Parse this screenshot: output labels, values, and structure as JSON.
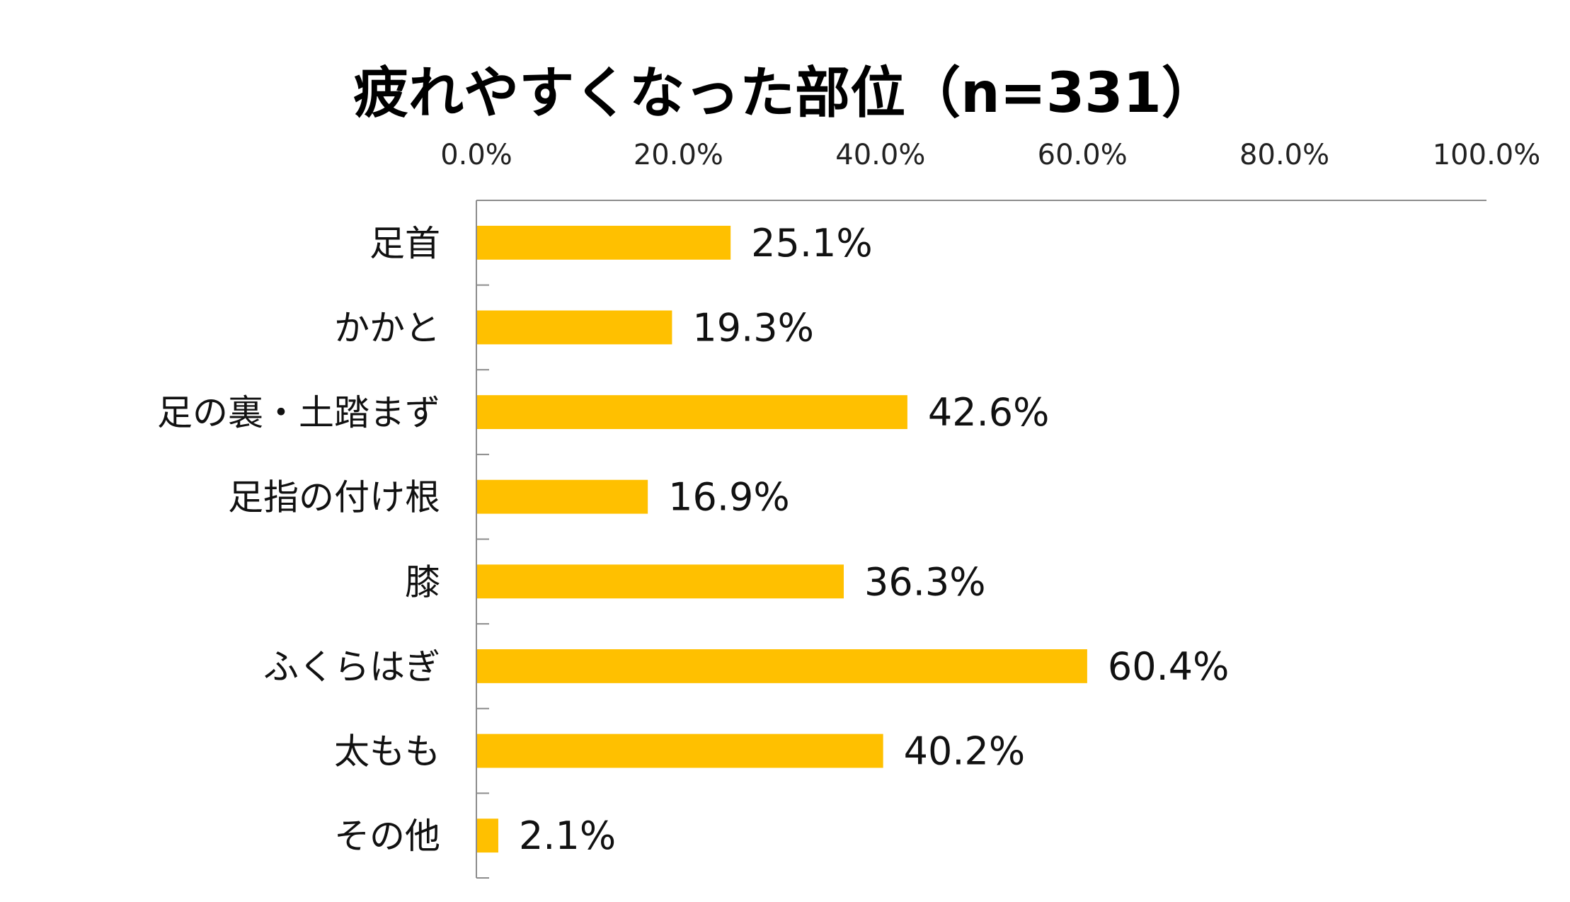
{
  "chart_data": {
    "type": "bar",
    "orientation": "horizontal",
    "title": "疲れやすくなった部位（n=331）",
    "categories": [
      "足首",
      "かかと",
      "足の裏・土踏まず",
      "足指の付け根",
      "膝",
      "ふくらはぎ",
      "太もも",
      "その他"
    ],
    "values": [
      25.1,
      19.3,
      42.6,
      16.9,
      36.3,
      60.4,
      40.2,
      2.1
    ],
    "value_labels": [
      "25.1%",
      "19.3%",
      "42.6%",
      "16.9%",
      "36.3%",
      "60.4%",
      "40.2%",
      "2.1%"
    ],
    "x_ticks": [
      0,
      20,
      40,
      60,
      80,
      100
    ],
    "x_tick_labels": [
      "0.0%",
      "20.0%",
      "40.0%",
      "60.0%",
      "80.0%",
      "100.0%"
    ],
    "xlim": [
      0,
      100
    ],
    "xaxis_position": "top",
    "grid": false,
    "legend": "none",
    "xlabel": "",
    "ylabel": ""
  },
  "colors": {
    "bar": "#FFC000",
    "axis": "#8C8C8C",
    "text": "#111111"
  }
}
